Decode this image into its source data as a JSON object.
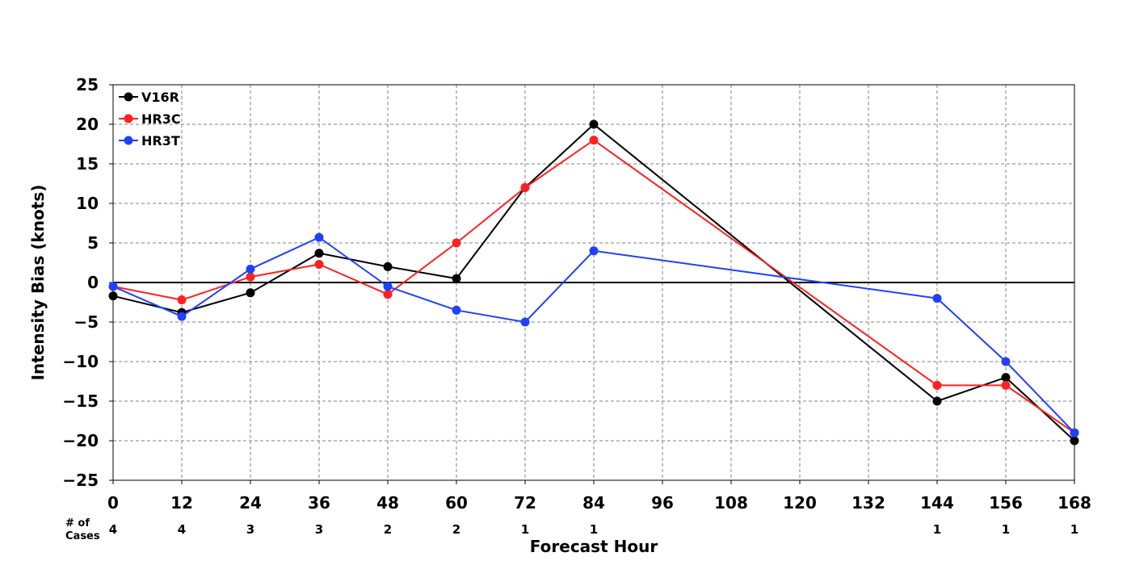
{
  "chart_data": {
    "type": "line",
    "title": "",
    "xlabel": "Forecast Hour",
    "ylabel": "Intensity Bias (knots)",
    "x_ticks": [
      0,
      12,
      24,
      36,
      48,
      60,
      72,
      84,
      96,
      108,
      120,
      132,
      144,
      156,
      168
    ],
    "y_ticks": [
      25,
      20,
      15,
      10,
      5,
      0,
      -5,
      -10,
      -15,
      -20,
      -25
    ],
    "xlim": [
      0,
      168
    ],
    "ylim": [
      -25,
      25
    ],
    "grid": true,
    "zero_line": true,
    "legend_position": "top-left",
    "cases_header_line1": "# of",
    "cases_header_line2": "Cases",
    "cases": [
      {
        "x": 0,
        "n": "4"
      },
      {
        "x": 12,
        "n": "4"
      },
      {
        "x": 24,
        "n": "3"
      },
      {
        "x": 36,
        "n": "3"
      },
      {
        "x": 48,
        "n": "2"
      },
      {
        "x": 60,
        "n": "2"
      },
      {
        "x": 72,
        "n": "1"
      },
      {
        "x": 84,
        "n": "1"
      },
      {
        "x": 144,
        "n": "1"
      },
      {
        "x": 156,
        "n": "1"
      },
      {
        "x": 168,
        "n": "1"
      }
    ],
    "series": [
      {
        "name": "V16R",
        "color": "#000000",
        "x": [
          0,
          12,
          24,
          36,
          48,
          60,
          72,
          84,
          144,
          156,
          168
        ],
        "y": [
          -1.7,
          -3.8,
          -1.3,
          3.7,
          2.0,
          0.5,
          12.0,
          20.0,
          -15.0,
          -12.0,
          -20.0
        ]
      },
      {
        "name": "HR3C",
        "color": "#ff2020",
        "x": [
          0,
          12,
          24,
          36,
          48,
          60,
          72,
          84,
          144,
          156,
          168
        ],
        "y": [
          -0.5,
          -2.2,
          0.7,
          2.3,
          -1.5,
          5.0,
          12.0,
          18.0,
          -13.0,
          -13.0,
          -19.0
        ]
      },
      {
        "name": "HR3T",
        "color": "#2040ff",
        "x": [
          0,
          12,
          24,
          36,
          48,
          60,
          72,
          84,
          144,
          156,
          168
        ],
        "y": [
          -0.5,
          -4.3,
          1.7,
          5.7,
          -0.5,
          -3.5,
          -5.0,
          4.0,
          -2.0,
          -10.0,
          -19.0
        ]
      }
    ]
  }
}
